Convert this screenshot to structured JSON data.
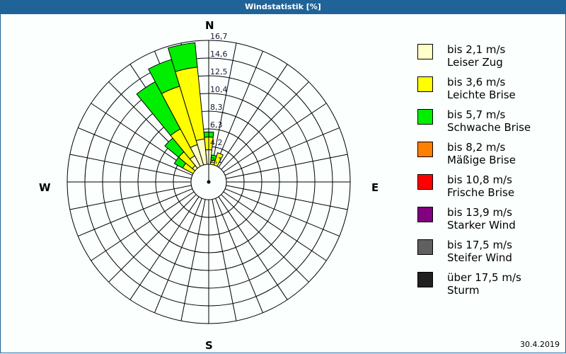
{
  "window": {
    "title": "Windstatistik [%]"
  },
  "compass": {
    "n": "N",
    "e": "E",
    "s": "S",
    "w": "W"
  },
  "footer": {
    "date": "30.4.2019"
  },
  "legend": [
    {
      "range": "bis 2,1 m/s",
      "name": "Leiser Zug",
      "color": "#ffffc8"
    },
    {
      "range": "bis 3,6 m/s",
      "name": "Leichte Brise",
      "color": "#ffff00"
    },
    {
      "range": "bis 5,7 m/s",
      "name": "Schwache Brise",
      "color": "#00ee00"
    },
    {
      "range": "bis 8,2 m/s",
      "name": "Mäßige Brise",
      "color": "#ff8000"
    },
    {
      "range": "bis 10,8 m/s",
      "name": "Frische Brise",
      "color": "#ff0000"
    },
    {
      "range": "bis 13,9 m/s",
      "name": "Starker Wind",
      "color": "#800080"
    },
    {
      "range": "bis 17,5 m/s",
      "name": "Steifer Wind",
      "color": "#606060"
    },
    {
      "range": "über 17,5 m/s",
      "name": "Sturm",
      "color": "#202020"
    }
  ],
  "chart_data": {
    "type": "polar-stacked-bar",
    "title": "Windstatistik [%]",
    "unit": "%",
    "sectors": 32,
    "sector_width_deg": 11.25,
    "radial_ticks": [
      "2,1",
      "4,2",
      "6,3",
      "8,3",
      "10,4",
      "12,5",
      "14,6",
      "16,7"
    ],
    "radial_max": 16.7,
    "series_names": [
      "bis 2,1 m/s",
      "bis 3,6 m/s",
      "bis 5,7 m/s",
      "bis 8,2 m/s",
      "bis 10,8 m/s",
      "bis 13,9 m/s",
      "bis 17,5 m/s",
      "über 17,5 m/s"
    ],
    "bars": [
      {
        "direction_deg": 0,
        "values": [
          3.8,
          1.5,
          0.6
        ]
      },
      {
        "direction_deg": 11.25,
        "values": [
          1.5,
          1.1,
          0.6
        ]
      },
      {
        "direction_deg": 22.5,
        "values": [
          1.2,
          2.4,
          0
        ]
      },
      {
        "direction_deg": 292.5,
        "values": [
          1.5,
          0.5,
          0
        ]
      },
      {
        "direction_deg": 303.75,
        "values": [
          2.0,
          1.5,
          1.1
        ]
      },
      {
        "direction_deg": 315,
        "values": [
          2.5,
          2.1,
          2.1
        ]
      },
      {
        "direction_deg": 326.25,
        "values": [
          3.5,
          3.6,
          6.3
        ]
      },
      {
        "direction_deg": 337.5,
        "values": [
          4.6,
          7.2,
          3.3
        ]
      },
      {
        "direction_deg": 348.75,
        "values": [
          5.1,
          8.5,
          2.9
        ]
      }
    ]
  }
}
